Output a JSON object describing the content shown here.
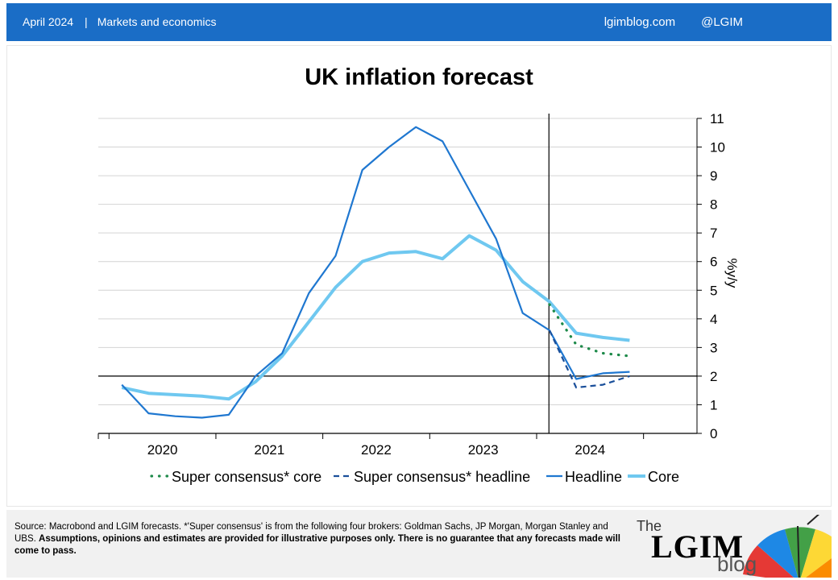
{
  "header": {
    "date": "April 2024",
    "separator": "|",
    "category": "Markets and economics",
    "site": "lgimblog.com",
    "handle": "@LGIM"
  },
  "footer": {
    "source": "Source: Macrobond and LGIM forecasts. *'Super consensus' is from the following four brokers: Goldman Sachs, JP Morgan, Morgan Stanley and UBS.",
    "disclaimer": "Assumptions, opinions and estimates are provided for illustrative purposes only. There is no guarantee that any forecasts made will come to pass."
  },
  "logo": {
    "the": "The",
    "name": "LGIM",
    "blog": "blog"
  },
  "colors": {
    "header_bg": "#1a6dc6",
    "headline": "#1f77d0",
    "core": "#6fc8f0",
    "super_core": "#1e8a4a",
    "super_headline": "#1a4f9a"
  },
  "chart_data": {
    "type": "line",
    "title": "UK inflation forecast",
    "ylabel": "%y/y",
    "ylim": [
      0,
      11
    ],
    "yticks": [
      0,
      1,
      2,
      3,
      4,
      5,
      6,
      7,
      8,
      9,
      10,
      11
    ],
    "xlim": [
      2019.4,
      2025.0
    ],
    "x_tick_labels": [
      "2020",
      "2021",
      "2022",
      "2023",
      "2024"
    ],
    "x_tick_label_positions": [
      2020.0,
      2021.0,
      2022.0,
      2023.0,
      2024.0
    ],
    "x_boundaries": [
      2019.5,
      2020.5,
      2021.5,
      2022.5,
      2023.5,
      2024.5
    ],
    "reference_line_y": 2,
    "forecast_start_x": 2023.6,
    "grid": true,
    "legend_position": "bottom",
    "series": [
      {
        "name": "Headline",
        "style": "solid",
        "x": [
          2019.62,
          2019.87,
          2020.12,
          2020.37,
          2020.62,
          2020.87,
          2021.12,
          2021.37,
          2021.62,
          2021.87,
          2022.12,
          2022.37,
          2022.62,
          2022.87,
          2023.12,
          2023.37,
          2023.62,
          2023.87,
          2024.12,
          2024.37
        ],
        "values": [
          1.7,
          0.7,
          0.6,
          0.55,
          0.65,
          2.0,
          2.8,
          4.9,
          6.2,
          9.2,
          10.0,
          10.7,
          10.2,
          8.5,
          6.8,
          4.2,
          3.6,
          1.9,
          2.1,
          2.15
        ]
      },
      {
        "name": "Core",
        "style": "solid",
        "x": [
          2019.62,
          2019.87,
          2020.12,
          2020.37,
          2020.62,
          2020.87,
          2021.12,
          2021.37,
          2021.62,
          2021.87,
          2022.12,
          2022.37,
          2022.62,
          2022.87,
          2023.12,
          2023.37,
          2023.62,
          2023.87,
          2024.12,
          2024.37
        ],
        "values": [
          1.6,
          1.4,
          1.35,
          1.3,
          1.2,
          1.8,
          2.7,
          3.9,
          5.1,
          6.0,
          6.3,
          6.35,
          6.1,
          6.9,
          6.4,
          5.3,
          4.6,
          3.5,
          3.35,
          3.25
        ]
      },
      {
        "name": "Super consensus* core",
        "style": "dotted",
        "x": [
          2023.62,
          2023.87,
          2024.12,
          2024.37
        ],
        "values": [
          4.5,
          3.1,
          2.8,
          2.7
        ]
      },
      {
        "name": "Super consensus* headline",
        "style": "dashed",
        "x": [
          2023.62,
          2023.87,
          2024.12,
          2024.37
        ],
        "values": [
          3.6,
          1.6,
          1.7,
          2.0
        ]
      }
    ],
    "legend": [
      "Super consensus* core",
      "Super consensus* headline",
      "Headline",
      "Core"
    ]
  }
}
